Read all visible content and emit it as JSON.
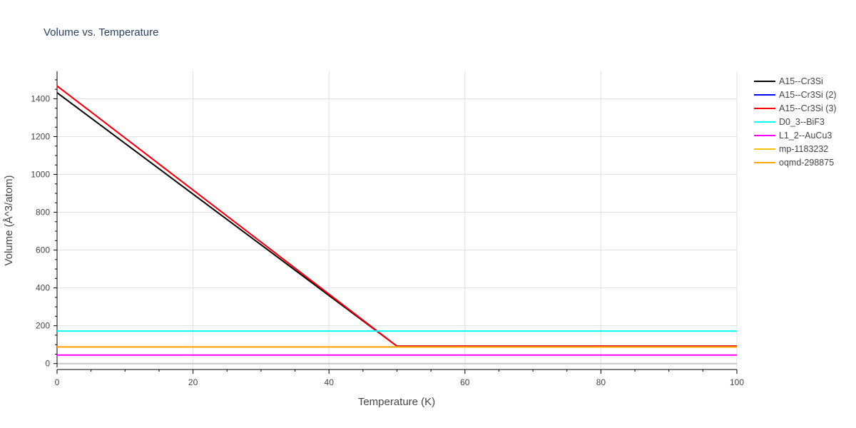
{
  "chart_data": {
    "type": "line",
    "title": "Volume vs. Temperature",
    "xlabel": "Temperature (K)",
    "ylabel": "Volume (Å^3/atom)",
    "xlim": [
      0,
      100
    ],
    "ylim": [
      -20,
      1545
    ],
    "x_ticks": [
      0,
      20,
      40,
      60,
      80,
      100
    ],
    "y_ticks": [
      0,
      200,
      400,
      600,
      800,
      1000,
      1200,
      1400
    ],
    "grid": true,
    "legend_position": "right",
    "series": [
      {
        "name": "A15--Cr3Si",
        "color": "#000000",
        "x": [
          0,
          50,
          100
        ],
        "y": [
          1432,
          92,
          92
        ]
      },
      {
        "name": "A15--Cr3Si (2)",
        "color": "#0000ff",
        "x": [
          0,
          50,
          100
        ],
        "y": [
          1468,
          92,
          92
        ]
      },
      {
        "name": "A15--Cr3Si (3)",
        "color": "#ff0000",
        "x": [
          0,
          50,
          100
        ],
        "y": [
          1468,
          92,
          92
        ]
      },
      {
        "name": "D0_3--BiF3",
        "color": "#00ffff",
        "x": [
          0,
          100
        ],
        "y": [
          172,
          172
        ]
      },
      {
        "name": "L1_2--AuCu3",
        "color": "#ff00ff",
        "x": [
          0,
          100
        ],
        "y": [
          45,
          45
        ]
      },
      {
        "name": "mp-1183232",
        "color": "#ffc000",
        "x": [
          0,
          100
        ],
        "y": [
          88,
          88
        ]
      },
      {
        "name": "oqmd-298875",
        "color": "#ffa500",
        "x": [
          0,
          100
        ],
        "y": [
          88,
          88
        ]
      }
    ]
  }
}
